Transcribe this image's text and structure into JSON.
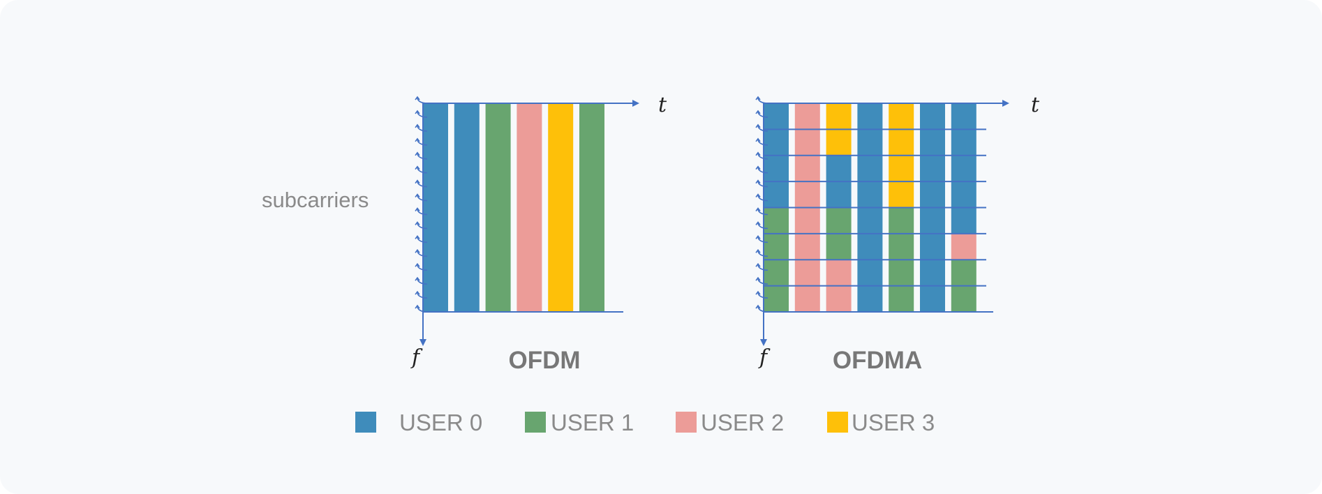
{
  "colors": {
    "background": "#f7f9fb",
    "axis": "#4472c4",
    "user0": "#3f8cbb",
    "user1": "#68a56f",
    "user2": "#ec9c98",
    "user3": "#fec009"
  },
  "subcarriers_label": "subcarriers",
  "ofdm": {
    "title": "OFDM",
    "time_axis_label": "t",
    "freq_axis_label": "f",
    "slots": [
      0,
      0,
      1,
      2,
      3,
      1
    ]
  },
  "ofdma": {
    "title": "OFDMA",
    "time_axis_label": "t",
    "freq_axis_label": "f",
    "band_count": 8,
    "columns": [
      [
        0,
        0,
        0,
        0,
        1,
        1,
        1,
        1
      ],
      [
        2,
        2,
        2,
        2,
        2,
        2,
        2,
        2
      ],
      [
        3,
        3,
        0,
        0,
        1,
        1,
        2,
        2
      ],
      [
        0,
        0,
        0,
        0,
        0,
        0,
        0,
        0
      ],
      [
        3,
        3,
        3,
        3,
        1,
        1,
        1,
        1
      ],
      [
        0,
        0,
        0,
        0,
        0,
        0,
        0,
        0
      ],
      [
        0,
        0,
        0,
        0,
        0,
        2,
        1,
        1
      ]
    ]
  },
  "legend": [
    {
      "label": "USER 0",
      "color": "#3f8cbb"
    },
    {
      "label": "USER 1",
      "color": "#68a56f"
    },
    {
      "label": "USER 2",
      "color": "#ec9c98"
    },
    {
      "label": "USER 3",
      "color": "#fec009"
    }
  ]
}
